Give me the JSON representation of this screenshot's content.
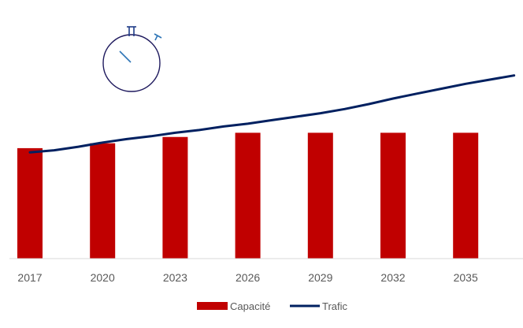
{
  "chart_data": {
    "type": "bar",
    "categories": [
      "2017",
      "2020",
      "2023",
      "2026",
      "2029",
      "2032",
      "2035"
    ],
    "series": [
      {
        "name": "Capacité",
        "kind": "bar",
        "color": "#C00000",
        "values": [
          158,
          165,
          174,
          180,
          180,
          180,
          180
        ]
      },
      {
        "name": "Trafic",
        "kind": "line",
        "color": "#002060",
        "x": [
          2017,
          2018,
          2019,
          2020,
          2021,
          2022,
          2023,
          2024,
          2025,
          2026,
          2027,
          2028,
          2029,
          2030,
          2031,
          2032,
          2033,
          2034,
          2035,
          2036,
          2037
        ],
        "values": [
          152,
          155,
          160,
          166,
          171,
          175,
          180,
          184,
          189,
          193,
          198,
          203,
          208,
          214,
          221,
          229,
          236,
          243,
          250,
          256,
          262
        ]
      }
    ],
    "ylim": [
      0,
      300
    ],
    "grid": false,
    "legend_position": "bottom"
  },
  "decoration": {
    "icon": "stopwatch-icon",
    "icon_color": "#1F3C88"
  }
}
